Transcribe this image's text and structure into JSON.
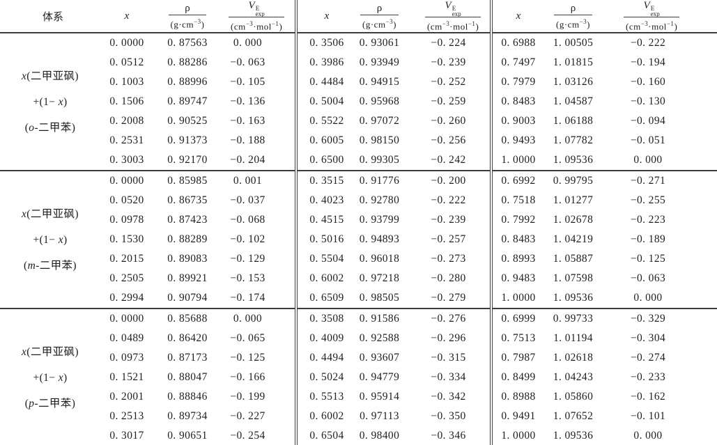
{
  "table": {
    "header": {
      "system": "体系",
      "x_label": "x",
      "rho": {
        "num": "ρ",
        "den_pre": "(g·cm",
        "den_sup": "−3",
        "den_post": ")"
      },
      "v": {
        "num_base": "V",
        "num_sup": "E",
        "num_sub": "exp",
        "den_pre": "(cm",
        "den_sup1": "−3",
        "den_mid": "·mol",
        "den_sup2": "−1",
        "den_post": ")"
      }
    },
    "blocks": [
      {
        "label_segments": [
          [
            [
              "i",
              "x"
            ],
            [
              "t",
              "(二甲亚砜)"
            ]
          ],
          [
            [
              "t",
              "+(1− "
            ],
            [
              "i",
              "x"
            ],
            [
              "t",
              ")"
            ]
          ],
          [
            [
              "t",
              "("
            ],
            [
              "i",
              "o"
            ],
            [
              "t",
              "-二甲苯)"
            ]
          ]
        ],
        "rows": [
          [
            "0. 0000",
            "0. 87563",
            "0. 000",
            "0. 3506",
            "0. 93061",
            "−0. 224",
            "0. 6988",
            "1. 00505",
            "−0. 222"
          ],
          [
            "0. 0512",
            "0. 88286",
            "−0. 063",
            "0. 3986",
            "0. 93949",
            "−0. 239",
            "0. 7497",
            "1. 01815",
            "−0. 194"
          ],
          [
            "0. 1003",
            "0. 88996",
            "−0. 105",
            "0. 4484",
            "0. 94915",
            "−0. 252",
            "0. 7979",
            "1. 03126",
            "−0. 160"
          ],
          [
            "0. 1506",
            "0. 89747",
            "−0. 136",
            "0. 5004",
            "0. 95968",
            "−0. 259",
            "0. 8483",
            "1. 04587",
            "−0. 130"
          ],
          [
            "0. 2008",
            "0. 90525",
            "−0. 163",
            "0. 5522",
            "0. 97072",
            "−0. 260",
            "0. 9003",
            "1. 06188",
            "−0. 094"
          ],
          [
            "0. 2531",
            "0. 91373",
            "−0. 188",
            "0. 6005",
            "0. 98150",
            "−0. 256",
            "0. 9493",
            "1. 07782",
            "−0. 051"
          ],
          [
            "0. 3003",
            "0. 92170",
            "−0. 204",
            "0. 6500",
            "0. 99305",
            "−0. 242",
            "1. 0000",
            "1. 09536",
            "0. 000"
          ]
        ]
      },
      {
        "label_segments": [
          [
            [
              "i",
              "x"
            ],
            [
              "t",
              "(二甲亚砜)"
            ]
          ],
          [
            [
              "t",
              "+(1− "
            ],
            [
              "i",
              "x"
            ],
            [
              "t",
              ")"
            ]
          ],
          [
            [
              "t",
              "("
            ],
            [
              "i",
              "m"
            ],
            [
              "t",
              "-二甲苯)"
            ]
          ]
        ],
        "rows": [
          [
            "0. 0000",
            "0. 85985",
            "0. 001",
            "0. 3515",
            "0. 91776",
            "−0. 200",
            "0. 6992",
            "0. 99795",
            "−0. 271"
          ],
          [
            "0. 0520",
            "0. 86735",
            "−0. 037",
            "0. 4023",
            "0. 92780",
            "−0. 222",
            "0. 7518",
            "1. 01277",
            "−0. 255"
          ],
          [
            "0. 0978",
            "0. 87423",
            "−0. 068",
            "0. 4515",
            "0. 93799",
            "−0. 239",
            "0. 7992",
            "1. 02678",
            "−0. 223"
          ],
          [
            "0. 1530",
            "0. 88289",
            "−0. 102",
            "0. 5016",
            "0. 94893",
            "−0. 257",
            "0. 8483",
            "1. 04219",
            "−0. 189"
          ],
          [
            "0. 2015",
            "0. 89083",
            "−0. 129",
            "0. 5504",
            "0. 96018",
            "−0. 273",
            "0. 8993",
            "1. 05887",
            "−0. 125"
          ],
          [
            "0. 2505",
            "0. 89921",
            "−0. 153",
            "0. 6002",
            "0. 97218",
            "−0. 280",
            "0. 9483",
            "1. 07598",
            "−0. 063"
          ],
          [
            "0. 2994",
            "0. 90794",
            "−0. 174",
            "0. 6509",
            "0. 98505",
            "−0. 279",
            "1. 0000",
            "1. 09536",
            "0. 000"
          ]
        ]
      },
      {
        "label_segments": [
          [
            [
              "i",
              "x"
            ],
            [
              "t",
              "(二甲亚砜)"
            ]
          ],
          [
            [
              "t",
              "+(1− "
            ],
            [
              "i",
              "x"
            ],
            [
              "t",
              ")"
            ]
          ],
          [
            [
              "t",
              "("
            ],
            [
              "i",
              "p"
            ],
            [
              "t",
              "-二甲苯)"
            ]
          ]
        ],
        "rows": [
          [
            "0. 0000",
            "0. 85688",
            "0. 000",
            "0. 3508",
            "0. 91586",
            "−0. 276",
            "0. 6999",
            "0. 99733",
            "−0. 329"
          ],
          [
            "0. 0489",
            "0. 86420",
            "−0. 065",
            "0. 4009",
            "0. 92588",
            "−0. 296",
            "0. 7513",
            "1. 01194",
            "−0. 304"
          ],
          [
            "0. 0973",
            "0. 87173",
            "−0. 125",
            "0. 4494",
            "0. 93607",
            "−0. 315",
            "0. 7987",
            "1. 02618",
            "−0. 274"
          ],
          [
            "0. 1521",
            "0. 88047",
            "−0. 166",
            "0. 5024",
            "0. 94779",
            "−0. 334",
            "0. 8499",
            "1. 04243",
            "−0. 233"
          ],
          [
            "0. 2001",
            "0. 88846",
            "−0. 199",
            "0. 5513",
            "0. 95914",
            "−0. 342",
            "0. 8988",
            "1. 05860",
            "−0. 162"
          ],
          [
            "0. 2513",
            "0. 89734",
            "−0. 227",
            "0. 6002",
            "0. 97113",
            "−0. 350",
            "0. 9491",
            "1. 07652",
            "−0. 101"
          ],
          [
            "0. 3017",
            "0. 90651",
            "−0. 254",
            "0. 6504",
            "0. 98400",
            "−0. 346",
            "1. 0000",
            "1. 09536",
            "0. 000"
          ]
        ]
      }
    ]
  }
}
